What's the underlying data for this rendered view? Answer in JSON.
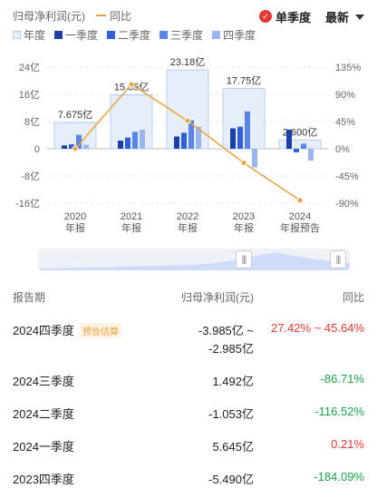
{
  "legend": {
    "metric": "归母净利润(元)",
    "yoy": "同比",
    "year": "年度",
    "q1": "一季度",
    "q2": "二季度",
    "q3": "三季度",
    "q4": "四季度"
  },
  "controls": {
    "single_quarter": "单季度",
    "latest": "最新"
  },
  "colors": {
    "year_bar": "#e6edfb",
    "year_bar_border": "#b9cdf3",
    "q1": "#1a3fa6",
    "q2": "#2f5fdb",
    "q3": "#5a84e8",
    "q4": "#9bb5f0",
    "yoy_line": "#e8a33c",
    "accent_red": "#e53935"
  },
  "chart_data": {
    "type": "bar+line",
    "categories": [
      "2020\n年报",
      "2021\n年报",
      "2022\n年报",
      "2023\n年报",
      "2024\n年报预告"
    ],
    "year_values": [
      7.675,
      15.85,
      23.18,
      17.75,
      2.6
    ],
    "year_labels": [
      "7.675亿",
      "15.85亿",
      "23.18亿",
      "17.75亿",
      "2.600亿"
    ],
    "quarter_values": {
      "q1": [
        1.0,
        2.4,
        3.6,
        6.0,
        5.645
      ],
      "q2": [
        1.3,
        3.3,
        4.7,
        6.5,
        -1.053
      ],
      "q3": [
        4.1,
        5.0,
        8.4,
        11.0,
        1.492
      ],
      "q4": [
        1.2,
        5.6,
        6.5,
        -5.49,
        -3.485
      ]
    },
    "yoy_values": [
      0,
      106.5,
      46.3,
      -23.4,
      -85.4
    ],
    "y_left": {
      "min": -16,
      "max": 24,
      "ticks": [
        "24亿",
        "16亿",
        "8亿",
        "0",
        "-8亿",
        "-16亿"
      ],
      "tick_values": [
        24,
        16,
        8,
        0,
        -8,
        -16
      ]
    },
    "y_right": {
      "min": -90,
      "max": 135,
      "ticks": [
        "135%",
        "90%",
        "45%",
        "0%",
        "-45%",
        "-90%"
      ],
      "tick_values": [
        135,
        90,
        45,
        0,
        -45,
        -90
      ]
    }
  },
  "table": {
    "headers": {
      "period": "报告期",
      "profit": "归母净利润(元)",
      "yoy": "同比"
    },
    "rows": [
      {
        "period": "2024四季度",
        "tag": "预告估算",
        "value": "-3.985亿 ~",
        "value2": "-2.985亿",
        "yoy": "27.42% ~ 45.64%",
        "dir": "up"
      },
      {
        "period": "2024三季度",
        "tag": "",
        "value": "1.492亿",
        "value2": "",
        "yoy": "-86.71%",
        "dir": "down"
      },
      {
        "period": "2024二季度",
        "tag": "",
        "value": "-1.053亿",
        "value2": "",
        "yoy": "-116.52%",
        "dir": "down"
      },
      {
        "period": "2024一季度",
        "tag": "",
        "value": "5.645亿",
        "value2": "",
        "yoy": "0.21%",
        "dir": "up"
      },
      {
        "period": "2023四季度",
        "tag": "",
        "value": "-5.490亿",
        "value2": "",
        "yoy": "-184.09%",
        "dir": "down"
      }
    ]
  }
}
